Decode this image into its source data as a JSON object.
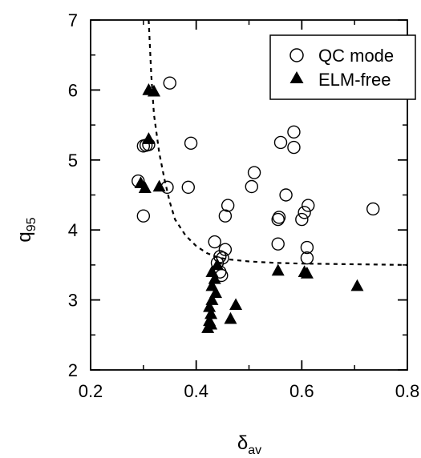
{
  "chart_data": {
    "type": "scatter",
    "title": "",
    "xlabel": "δ",
    "xlabel_sub": "av",
    "ylabel": "q",
    "ylabel_sub": "95",
    "xlim": [
      0.2,
      0.8
    ],
    "ylim": [
      2,
      7
    ],
    "xticks": [
      "0.2",
      "0.4",
      "0.6",
      "0.8"
    ],
    "yticks": [
      "2",
      "3",
      "4",
      "5",
      "6",
      "7"
    ],
    "grid": false,
    "legend_position": "top-right",
    "series": [
      {
        "name": "QC mode",
        "marker": "open-circle",
        "color": "#000000",
        "points": [
          [
            0.35,
            6.1
          ],
          [
            0.29,
            4.7
          ],
          [
            0.3,
            5.2
          ],
          [
            0.305,
            5.21
          ],
          [
            0.31,
            5.22
          ],
          [
            0.3,
            4.2
          ],
          [
            0.345,
            4.61
          ],
          [
            0.385,
            4.61
          ],
          [
            0.39,
            5.24
          ],
          [
            0.435,
            3.83
          ],
          [
            0.44,
            3.53
          ],
          [
            0.445,
            3.62
          ],
          [
            0.445,
            3.4
          ],
          [
            0.448,
            3.35
          ],
          [
            0.45,
            3.6
          ],
          [
            0.455,
            3.72
          ],
          [
            0.455,
            4.2
          ],
          [
            0.46,
            4.35
          ],
          [
            0.505,
            4.62
          ],
          [
            0.51,
            4.82
          ],
          [
            0.555,
            4.15
          ],
          [
            0.555,
            3.8
          ],
          [
            0.557,
            4.18
          ],
          [
            0.56,
            5.25
          ],
          [
            0.57,
            4.5
          ],
          [
            0.585,
            5.4
          ],
          [
            0.585,
            5.18
          ],
          [
            0.6,
            4.15
          ],
          [
            0.605,
            4.25
          ],
          [
            0.61,
            3.75
          ],
          [
            0.61,
            3.6
          ],
          [
            0.612,
            4.35
          ],
          [
            0.735,
            4.3
          ]
        ]
      },
      {
        "name": "ELM-free",
        "marker": "filled-triangle",
        "color": "#000000",
        "points": [
          [
            0.31,
            6.0
          ],
          [
            0.32,
            5.98
          ],
          [
            0.31,
            5.3
          ],
          [
            0.295,
            4.67
          ],
          [
            0.303,
            4.6
          ],
          [
            0.33,
            4.62
          ],
          [
            0.43,
            3.4
          ],
          [
            0.435,
            3.3
          ],
          [
            0.43,
            3.2
          ],
          [
            0.437,
            3.1
          ],
          [
            0.44,
            3.5
          ],
          [
            0.43,
            3.0
          ],
          [
            0.425,
            2.9
          ],
          [
            0.428,
            2.8
          ],
          [
            0.425,
            2.7
          ],
          [
            0.422,
            2.6
          ],
          [
            0.428,
            2.65
          ],
          [
            0.465,
            2.73
          ],
          [
            0.475,
            2.93
          ],
          [
            0.555,
            3.42
          ],
          [
            0.605,
            3.4
          ],
          [
            0.61,
            3.38
          ],
          [
            0.705,
            3.2
          ]
        ]
      }
    ],
    "fit_curve": {
      "style": "dashed",
      "points": [
        [
          0.31,
          7.0
        ],
        [
          0.315,
          6.2
        ],
        [
          0.32,
          5.65
        ],
        [
          0.33,
          5.1
        ],
        [
          0.34,
          4.72
        ],
        [
          0.35,
          4.4
        ],
        [
          0.36,
          4.15
        ],
        [
          0.38,
          3.92
        ],
        [
          0.4,
          3.77
        ],
        [
          0.42,
          3.67
        ],
        [
          0.44,
          3.61
        ],
        [
          0.46,
          3.58
        ],
        [
          0.5,
          3.55
        ],
        [
          0.55,
          3.53
        ],
        [
          0.6,
          3.52
        ],
        [
          0.7,
          3.51
        ],
        [
          0.8,
          3.5
        ]
      ]
    }
  }
}
